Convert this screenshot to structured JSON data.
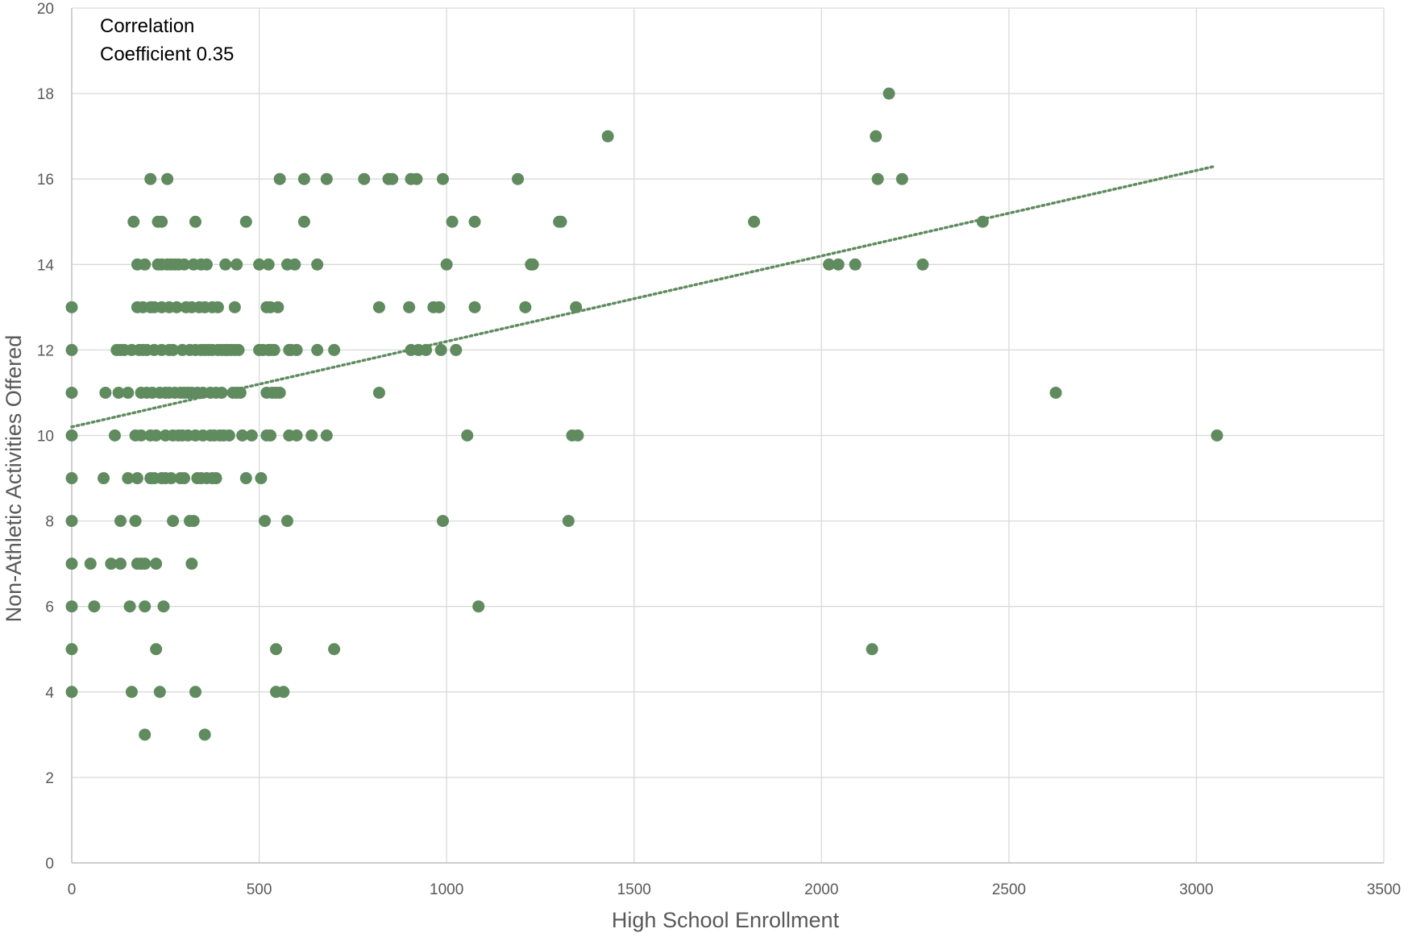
{
  "chart_data": {
    "type": "scatter",
    "title": "",
    "xlabel": "High School Enrollment",
    "ylabel": "Non-Athletic Activities Offered",
    "xlim": [
      0,
      3500
    ],
    "ylim": [
      0,
      20
    ],
    "x_ticks": [
      "0",
      "500",
      "1000",
      "1500",
      "2000",
      "2500",
      "3000",
      "3500"
    ],
    "y_ticks": [
      "0",
      "2",
      "4",
      "6",
      "8",
      "10",
      "12",
      "14",
      "16",
      "18",
      "20"
    ],
    "grid": true,
    "legend": "none",
    "annotation_lines": [
      "Correlation",
      "Coefficient 0.35"
    ],
    "colors": {
      "points": "#5f8b5f",
      "trendline": "#5f8b5f",
      "grid": "#d9d9d9",
      "axis": "#bfbfbf"
    },
    "trendline": {
      "type": "linear",
      "style": "dotted",
      "x": [
        0,
        3050
      ],
      "y": [
        10.2,
        16.3
      ]
    },
    "series": [
      {
        "points": [
          [
            0,
            13
          ],
          [
            0,
            12
          ],
          [
            0,
            11
          ],
          [
            0,
            10
          ],
          [
            0,
            9
          ],
          [
            0,
            8
          ],
          [
            0,
            7
          ],
          [
            0,
            6
          ],
          [
            0,
            5
          ],
          [
            0,
            4
          ],
          [
            50,
            7
          ],
          [
            60,
            6
          ],
          [
            85,
            9
          ],
          [
            90,
            11
          ],
          [
            105,
            7
          ],
          [
            115,
            10
          ],
          [
            120,
            12
          ],
          [
            125,
            11
          ],
          [
            130,
            12
          ],
          [
            130,
            7
          ],
          [
            130,
            8
          ],
          [
            140,
            12
          ],
          [
            150,
            11
          ],
          [
            150,
            9
          ],
          [
            155,
            6
          ],
          [
            160,
            12
          ],
          [
            160,
            4
          ],
          [
            165,
            15
          ],
          [
            170,
            10
          ],
          [
            170,
            8
          ],
          [
            175,
            13
          ],
          [
            175,
            14
          ],
          [
            175,
            9
          ],
          [
            175,
            7
          ],
          [
            180,
            12
          ],
          [
            185,
            11
          ],
          [
            185,
            10
          ],
          [
            185,
            7
          ],
          [
            190,
            12
          ],
          [
            190,
            13
          ],
          [
            195,
            14
          ],
          [
            195,
            7
          ],
          [
            195,
            6
          ],
          [
            195,
            3
          ],
          [
            200,
            11
          ],
          [
            200,
            12
          ],
          [
            210,
            16
          ],
          [
            210,
            13
          ],
          [
            210,
            10
          ],
          [
            210,
            9
          ],
          [
            215,
            11
          ],
          [
            220,
            12
          ],
          [
            220,
            13
          ],
          [
            220,
            9
          ],
          [
            225,
            10
          ],
          [
            225,
            7
          ],
          [
            225,
            5
          ],
          [
            230,
            14
          ],
          [
            230,
            15
          ],
          [
            235,
            11
          ],
          [
            235,
            4
          ],
          [
            240,
            12
          ],
          [
            240,
            15
          ],
          [
            240,
            13
          ],
          [
            240,
            14
          ],
          [
            240,
            9
          ],
          [
            245,
            6
          ],
          [
            250,
            11
          ],
          [
            250,
            10
          ],
          [
            250,
            9
          ],
          [
            255,
            16
          ],
          [
            255,
            14
          ],
          [
            260,
            12
          ],
          [
            260,
            13
          ],
          [
            260,
            11
          ],
          [
            265,
            14
          ],
          [
            265,
            9
          ],
          [
            270,
            8
          ],
          [
            270,
            10
          ],
          [
            270,
            12
          ],
          [
            275,
            11
          ],
          [
            275,
            14
          ],
          [
            280,
            13
          ],
          [
            285,
            10
          ],
          [
            285,
            14
          ],
          [
            290,
            11
          ],
          [
            290,
            9
          ],
          [
            295,
            10
          ],
          [
            295,
            12
          ],
          [
            300,
            11
          ],
          [
            300,
            9
          ],
          [
            300,
            14
          ],
          [
            305,
            13
          ],
          [
            310,
            11
          ],
          [
            310,
            10
          ],
          [
            315,
            12
          ],
          [
            315,
            8
          ],
          [
            320,
            13
          ],
          [
            320,
            11
          ],
          [
            320,
            7
          ],
          [
            325,
            14
          ],
          [
            325,
            8
          ],
          [
            330,
            15
          ],
          [
            330,
            10
          ],
          [
            330,
            12
          ],
          [
            330,
            4
          ],
          [
            335,
            11
          ],
          [
            335,
            9
          ],
          [
            340,
            13
          ],
          [
            345,
            14
          ],
          [
            345,
            12
          ],
          [
            345,
            9
          ],
          [
            350,
            11
          ],
          [
            350,
            10
          ],
          [
            355,
            13
          ],
          [
            355,
            12
          ],
          [
            355,
            3
          ],
          [
            360,
            14
          ],
          [
            360,
            9
          ],
          [
            365,
            12
          ],
          [
            370,
            10
          ],
          [
            370,
            11
          ],
          [
            375,
            13
          ],
          [
            375,
            12
          ],
          [
            375,
            9
          ],
          [
            380,
            10
          ],
          [
            385,
            11
          ],
          [
            385,
            9
          ],
          [
            390,
            12
          ],
          [
            390,
            13
          ],
          [
            395,
            10
          ],
          [
            400,
            11
          ],
          [
            400,
            12
          ],
          [
            405,
            10
          ],
          [
            410,
            14
          ],
          [
            410,
            12
          ],
          [
            415,
            12
          ],
          [
            420,
            10
          ],
          [
            425,
            12
          ],
          [
            430,
            11
          ],
          [
            435,
            13
          ],
          [
            435,
            12
          ],
          [
            440,
            14
          ],
          [
            440,
            11
          ],
          [
            445,
            12
          ],
          [
            450,
            11
          ],
          [
            455,
            10
          ],
          [
            465,
            15
          ],
          [
            465,
            9
          ],
          [
            480,
            10
          ],
          [
            500,
            14
          ],
          [
            500,
            12
          ],
          [
            505,
            9
          ],
          [
            510,
            12
          ],
          [
            515,
            8
          ],
          [
            520,
            13
          ],
          [
            520,
            11
          ],
          [
            520,
            10
          ],
          [
            525,
            14
          ],
          [
            525,
            12
          ],
          [
            530,
            13
          ],
          [
            530,
            12
          ],
          [
            530,
            10
          ],
          [
            535,
            11
          ],
          [
            540,
            12
          ],
          [
            545,
            11
          ],
          [
            545,
            5
          ],
          [
            545,
            4
          ],
          [
            550,
            13
          ],
          [
            555,
            16
          ],
          [
            555,
            11
          ],
          [
            565,
            4
          ],
          [
            575,
            14
          ],
          [
            575,
            8
          ],
          [
            580,
            12
          ],
          [
            580,
            10
          ],
          [
            585,
            12
          ],
          [
            595,
            14
          ],
          [
            600,
            12
          ],
          [
            600,
            10
          ],
          [
            620,
            16
          ],
          [
            620,
            15
          ],
          [
            640,
            10
          ],
          [
            655,
            14
          ],
          [
            655,
            12
          ],
          [
            680,
            16
          ],
          [
            680,
            10
          ],
          [
            700,
            12
          ],
          [
            700,
            5
          ],
          [
            780,
            16
          ],
          [
            820,
            13
          ],
          [
            820,
            11
          ],
          [
            845,
            16
          ],
          [
            855,
            16
          ],
          [
            900,
            13
          ],
          [
            905,
            12
          ],
          [
            905,
            16
          ],
          [
            920,
            16
          ],
          [
            925,
            12
          ],
          [
            945,
            12
          ],
          [
            965,
            13
          ],
          [
            980,
            13
          ],
          [
            985,
            12
          ],
          [
            990,
            16
          ],
          [
            990,
            8
          ],
          [
            1000,
            14
          ],
          [
            1015,
            15
          ],
          [
            1025,
            12
          ],
          [
            1055,
            10
          ],
          [
            1075,
            15
          ],
          [
            1075,
            13
          ],
          [
            1085,
            6
          ],
          [
            1190,
            16
          ],
          [
            1210,
            13
          ],
          [
            1225,
            14
          ],
          [
            1230,
            14
          ],
          [
            1300,
            15
          ],
          [
            1305,
            15
          ],
          [
            1325,
            8
          ],
          [
            1335,
            10
          ],
          [
            1345,
            13
          ],
          [
            1350,
            10
          ],
          [
            1430,
            17
          ],
          [
            1820,
            15
          ],
          [
            2020,
            14
          ],
          [
            2045,
            14
          ],
          [
            2090,
            14
          ],
          [
            2135,
            5
          ],
          [
            2145,
            17
          ],
          [
            2150,
            16
          ],
          [
            2180,
            18
          ],
          [
            2215,
            16
          ],
          [
            2270,
            14
          ],
          [
            2430,
            15
          ],
          [
            2625,
            11
          ],
          [
            3055,
            10
          ]
        ]
      }
    ]
  }
}
